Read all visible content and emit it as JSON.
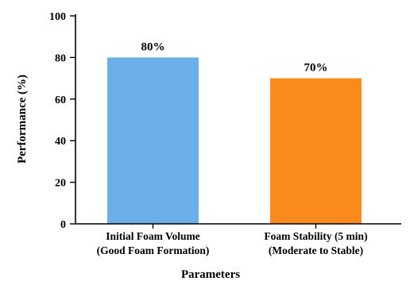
{
  "chart_data": {
    "type": "bar",
    "categories": [
      [
        "Initial Foam Volume",
        "(Good Foam Formation)"
      ],
      [
        "Foam Stability (5 min)",
        "(Moderate to Stable)"
      ]
    ],
    "values": [
      80,
      70
    ],
    "data_labels": [
      "80%",
      "70%"
    ],
    "colors": [
      "#6aaeea",
      "#f98b1d"
    ],
    "xlabel": "Parameters",
    "ylabel": "Performance (%)",
    "ylim": [
      0,
      100
    ],
    "yticks": [
      0,
      20,
      40,
      60,
      80,
      100
    ],
    "grid": false,
    "legend": "none"
  }
}
